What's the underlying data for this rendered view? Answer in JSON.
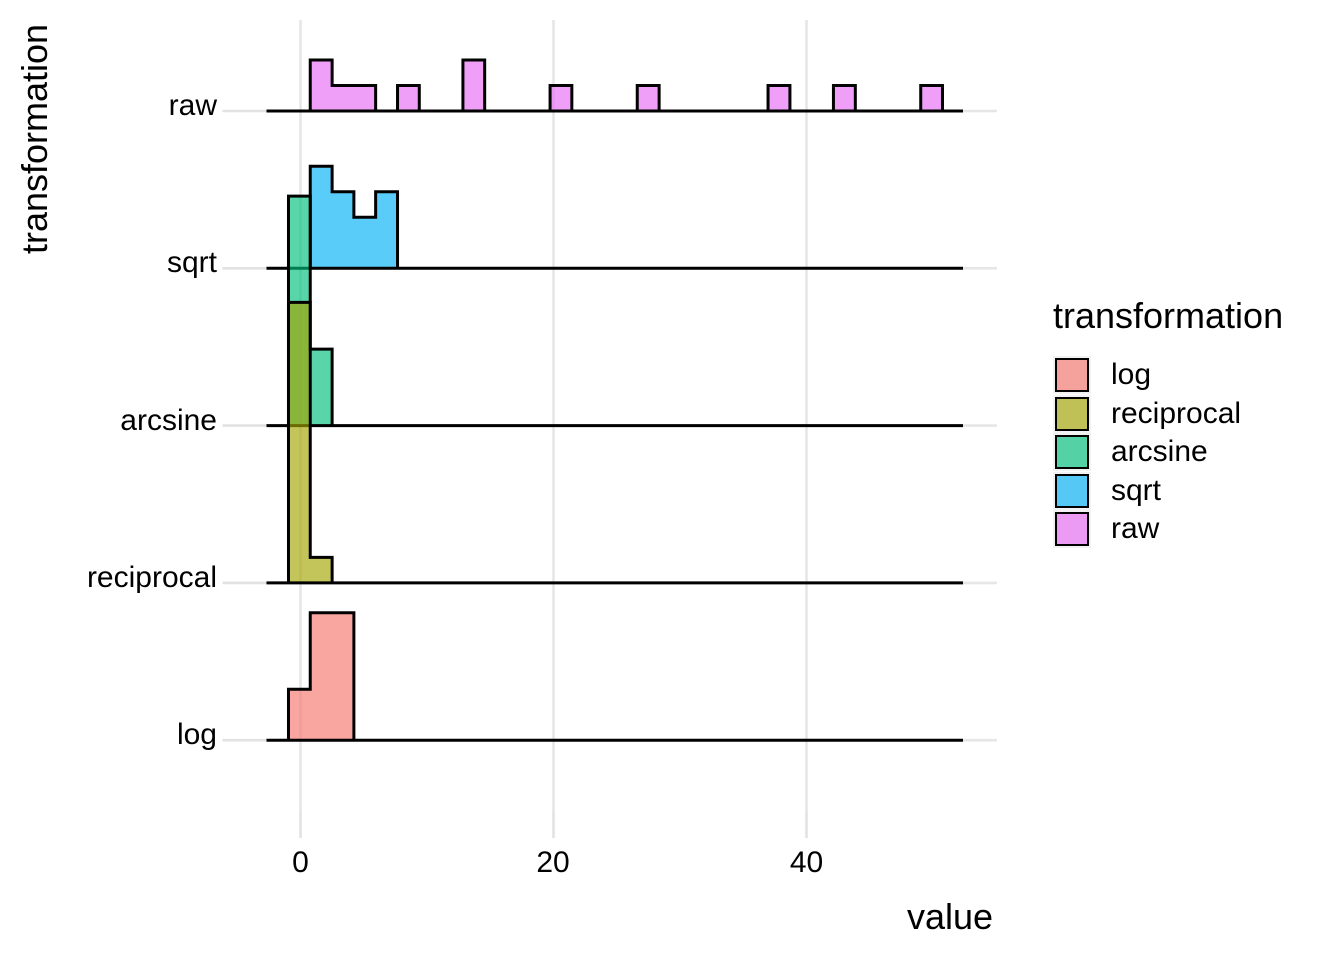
{
  "figure": {
    "y_axis_title": "transformation",
    "x_axis_title": "value",
    "background_color": "#FFFFFF",
    "text_color": "#000000",
    "outline_color": "#000000",
    "grid_color": "#E6E6E6",
    "tick_color": "#E2E2E2",
    "legend_key_bg": "#F2F2F2"
  },
  "x_axis": {
    "ticks": [
      {
        "value": 0,
        "label": "0"
      },
      {
        "value": 20,
        "label": "20"
      },
      {
        "value": 40,
        "label": "40"
      }
    ]
  },
  "categories": [
    "raw",
    "sqrt",
    "arcsine",
    "reciprocal",
    "log"
  ],
  "legend": {
    "title": "transformation",
    "entries": [
      {
        "label": "log",
        "color": "rgba(248,118,109,0.65)"
      },
      {
        "label": "reciprocal",
        "color": "rgba(163,165,0,0.65)"
      },
      {
        "label": "arcsine",
        "color": "rgba(0,191,125,0.65)"
      },
      {
        "label": "sqrt",
        "color": "rgba(0,176,246,0.65)"
      },
      {
        "label": "raw",
        "color": "rgba(231,107,243,0.65)"
      }
    ]
  },
  "chart_data": {
    "type": "ridgeline_histogram",
    "title": "",
    "xlabel": "value",
    "ylabel": "transformation",
    "x_ticks": [
      0,
      20,
      40
    ],
    "x_range": [
      -2.7,
      52.4
    ],
    "bin_width": 1.72,
    "grid": "major-only",
    "legend_position": "right",
    "row_order_top_to_bottom": [
      "raw",
      "sqrt",
      "arcsine",
      "reciprocal",
      "log"
    ],
    "draw_order_note": "rows painted top row first; lower rows overlap rows above",
    "counts_per_row_total": 12,
    "rows": [
      {
        "name": "raw",
        "color": "rgba(231,107,243,0.65)",
        "bars": [
          [
            0.77,
            2.5,
            2
          ],
          [
            2.5,
            4.22,
            1
          ],
          [
            4.22,
            5.94,
            1
          ],
          [
            7.67,
            9.39,
            1
          ],
          [
            12.84,
            14.56,
            2
          ],
          [
            19.73,
            21.45,
            1
          ],
          [
            26.62,
            28.35,
            1
          ],
          [
            36.96,
            38.69,
            1
          ],
          [
            42.13,
            43.86,
            1
          ],
          [
            49.03,
            50.75,
            1
          ]
        ]
      },
      {
        "name": "sqrt",
        "color": "rgba(0,176,246,0.65)",
        "bars": [
          [
            0.77,
            2.5,
            4
          ],
          [
            2.5,
            4.22,
            3
          ],
          [
            4.22,
            5.94,
            2
          ],
          [
            5.94,
            7.67,
            3
          ]
        ]
      },
      {
        "name": "arcsine",
        "color": "rgba(0,191,125,0.65)",
        "bars": [
          [
            -0.95,
            0.77,
            9
          ],
          [
            0.77,
            2.5,
            3
          ]
        ]
      },
      {
        "name": "reciprocal",
        "color": "rgba(163,165,0,0.65)",
        "bars": [
          [
            -0.95,
            0.77,
            11
          ],
          [
            0.77,
            2.5,
            1
          ]
        ]
      },
      {
        "name": "log",
        "color": "rgba(248,118,109,0.65)",
        "bars": [
          [
            -0.95,
            0.77,
            2
          ],
          [
            0.77,
            2.5,
            5
          ],
          [
            2.5,
            4.22,
            5
          ]
        ]
      }
    ]
  }
}
